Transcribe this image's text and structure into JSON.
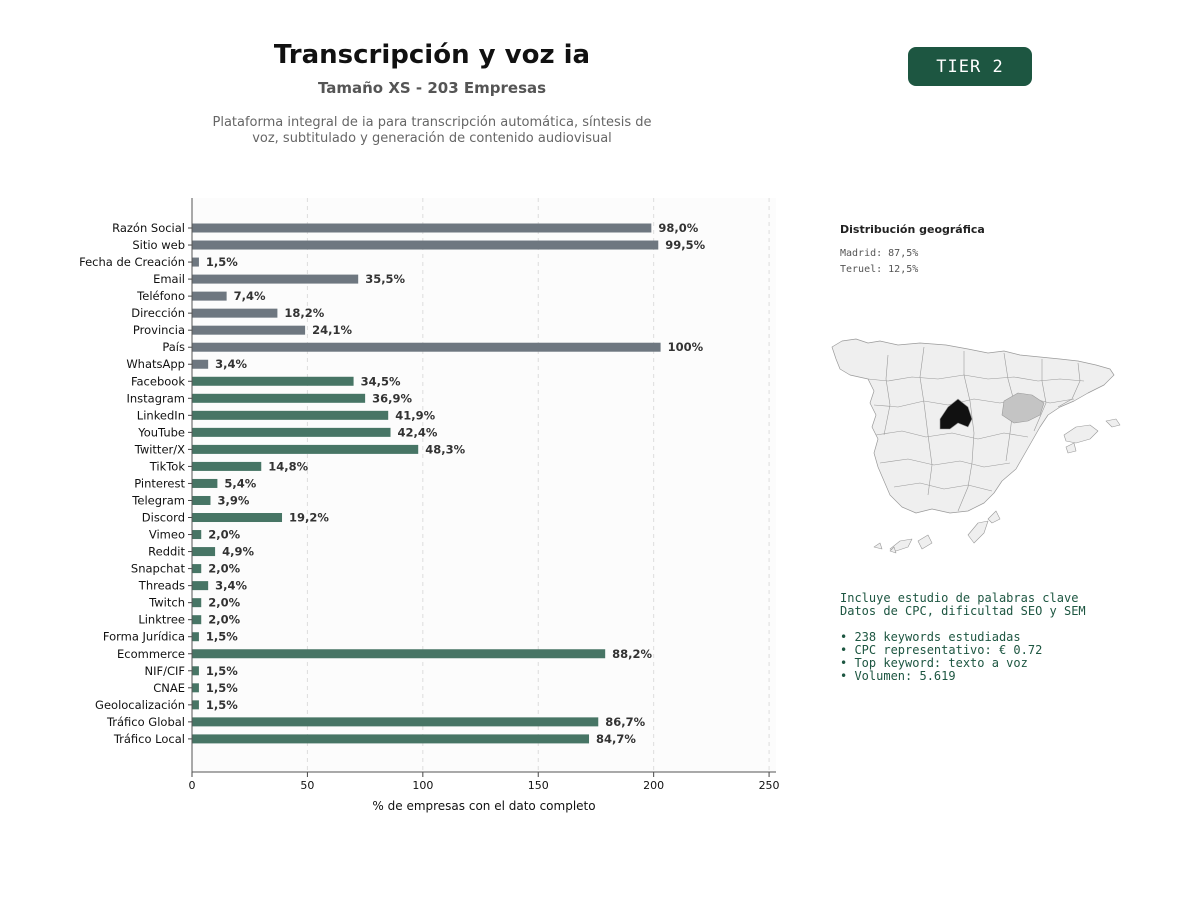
{
  "header": {
    "title": "Transcripción y voz ia",
    "subtitle": "Tamaño XS - 203 Empresas",
    "description_line1": "Plataforma integral de ia para transcripción automática, síntesis de",
    "description_line2": "voz, subtitulado y generación de contenido audiovisual",
    "tier": "TIER 2"
  },
  "chart_data": {
    "type": "bar",
    "orientation": "horizontal",
    "xlabel": "% de empresas con el dato completo",
    "xlim": [
      0,
      253
    ],
    "xticks": [
      0,
      50,
      100,
      150,
      200,
      250
    ],
    "grid": "vertical-dashed",
    "categories": [
      "Razón Social",
      "Sitio web",
      "Fecha de Creación",
      "Email",
      "Teléfono",
      "Dirección",
      "Provincia",
      "País",
      "WhatsApp",
      "Facebook",
      "Instagram",
      "LinkedIn",
      "YouTube",
      "Twitter/X",
      "TikTok",
      "Pinterest",
      "Telegram",
      "Discord",
      "Vimeo",
      "Reddit",
      "Snapchat",
      "Threads",
      "Twitch",
      "Linktree",
      "Forma Jurídica",
      "Ecommerce",
      "NIF/CIF",
      "CNAE",
      "Geolocalización",
      "Tráfico Global",
      "Tráfico Local"
    ],
    "values": [
      199,
      202,
      3,
      72,
      15,
      37,
      49,
      203,
      7,
      70,
      75,
      85,
      86,
      98,
      30,
      11,
      8,
      39,
      4,
      10,
      4,
      7,
      4,
      4,
      3,
      179,
      3,
      3,
      3,
      176,
      172
    ],
    "labels": [
      "98,0%",
      "99,5%",
      "1,5%",
      "35,5%",
      "7,4%",
      "18,2%",
      "24,1%",
      "100%",
      "3,4%",
      "34,5%",
      "36,9%",
      "41,9%",
      "42,4%",
      "48,3%",
      "14,8%",
      "5,4%",
      "3,9%",
      "19,2%",
      "2,0%",
      "4,9%",
      "2,0%",
      "3,4%",
      "2,0%",
      "2,0%",
      "1,5%",
      "88,2%",
      "1,5%",
      "1,5%",
      "1,5%",
      "86,7%",
      "84,7%"
    ],
    "colors": [
      "#6e7780",
      "#6e7780",
      "#6e7780",
      "#6e7780",
      "#6e7780",
      "#6e7780",
      "#6e7780",
      "#6e7780",
      "#6e7780",
      "#477565",
      "#477565",
      "#477565",
      "#477565",
      "#477565",
      "#477565",
      "#477565",
      "#477565",
      "#477565",
      "#477565",
      "#477565",
      "#477565",
      "#477565",
      "#477565",
      "#477565",
      "#477565",
      "#477565",
      "#477565",
      "#477565",
      "#477565",
      "#477565",
      "#477565"
    ]
  },
  "geo": {
    "title": "Distribución geográfica",
    "items": [
      "Madrid: 87,5%",
      "Teruel: 12,5%"
    ],
    "map_colors": {
      "base": "#efefef",
      "border": "#9a9a9a",
      "Madrid": "#111111",
      "Teruel": "#c4c4c4"
    }
  },
  "keywords": {
    "line1": "Incluye estudio de palabras clave",
    "line2": "Datos de CPC, dificultad SEO y SEM",
    "bullets": [
      "• 238 keywords estudiadas",
      "• CPC representativo: € 0.72",
      "• Top keyword: texto a voz",
      "• Volumen: 5.619"
    ]
  },
  "colors": {
    "accent": "#1d5641",
    "bar_gray": "#6e7780",
    "bar_green": "#477565"
  }
}
